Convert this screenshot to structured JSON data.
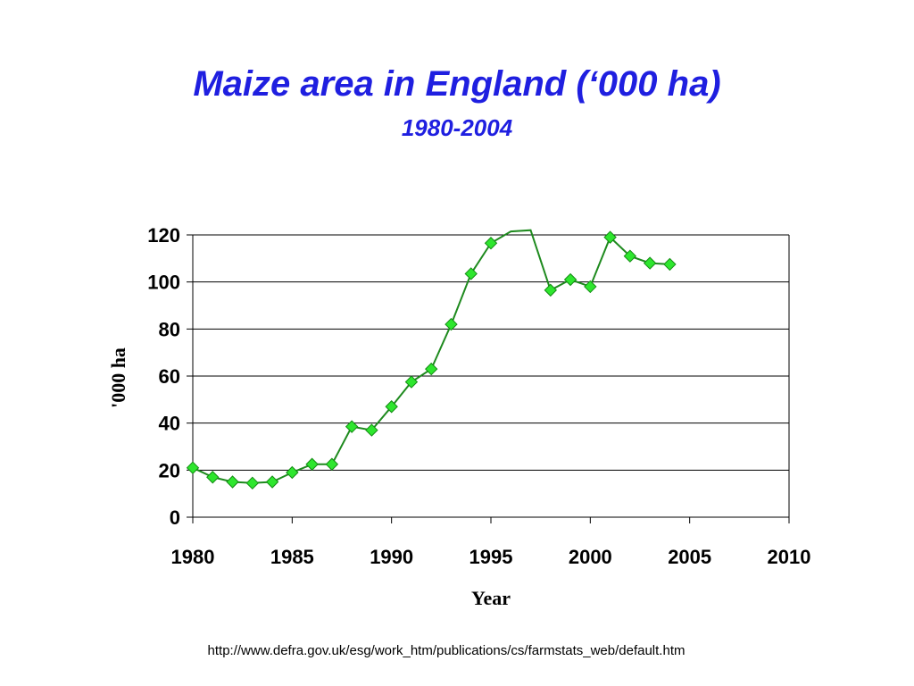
{
  "slide": {
    "title": "Maize area in England (‘000 ha)",
    "subtitle": "1980-2004",
    "source_url": "http://www.defra.gov.uk/esg/work_htm/publications/cs/farmstats_web/default.htm"
  },
  "chart_data": {
    "type": "line",
    "xlabel": "Year",
    "ylabel": "'000 ha",
    "xlim": [
      1980,
      2010
    ],
    "ylim": [
      0,
      120
    ],
    "xticks": [
      1980,
      1985,
      1990,
      1995,
      2000,
      2005,
      2010
    ],
    "yticks": [
      0,
      20,
      40,
      60,
      80,
      100,
      120
    ],
    "grid": "horizontal",
    "line_color": "#1e8a1e",
    "marker": "diamond",
    "marker_color": "#2ee62e",
    "series": [
      {
        "line_x": [
          1980,
          1981,
          1982,
          1983,
          1984,
          1985,
          1986,
          1987,
          1988,
          1989,
          1990,
          1991,
          1992,
          1993,
          1994,
          1995,
          1996,
          1997,
          1998,
          1999,
          2000,
          2001,
          2002,
          2003,
          2004
        ],
        "line_y": [
          21,
          17,
          15,
          14.5,
          15,
          19,
          22.5,
          22.5,
          38.5,
          37,
          47,
          57.5,
          63,
          82,
          103.5,
          116.5,
          121.5,
          122,
          96.5,
          101,
          98,
          119,
          111,
          108,
          107.5
        ],
        "marker_x": [
          1980,
          1981,
          1982,
          1983,
          1984,
          1985,
          1986,
          1987,
          1988,
          1989,
          1990,
          1991,
          1992,
          1993,
          1994,
          1995,
          1998,
          1999,
          2000,
          2001,
          2002,
          2003,
          2004
        ],
        "marker_y": [
          21,
          17,
          15,
          14.5,
          15,
          19,
          22.5,
          22.5,
          38.5,
          37,
          47,
          57.5,
          63,
          82,
          103.5,
          116.5,
          96.5,
          101,
          98,
          119,
          111,
          108,
          107.5
        ]
      }
    ]
  }
}
